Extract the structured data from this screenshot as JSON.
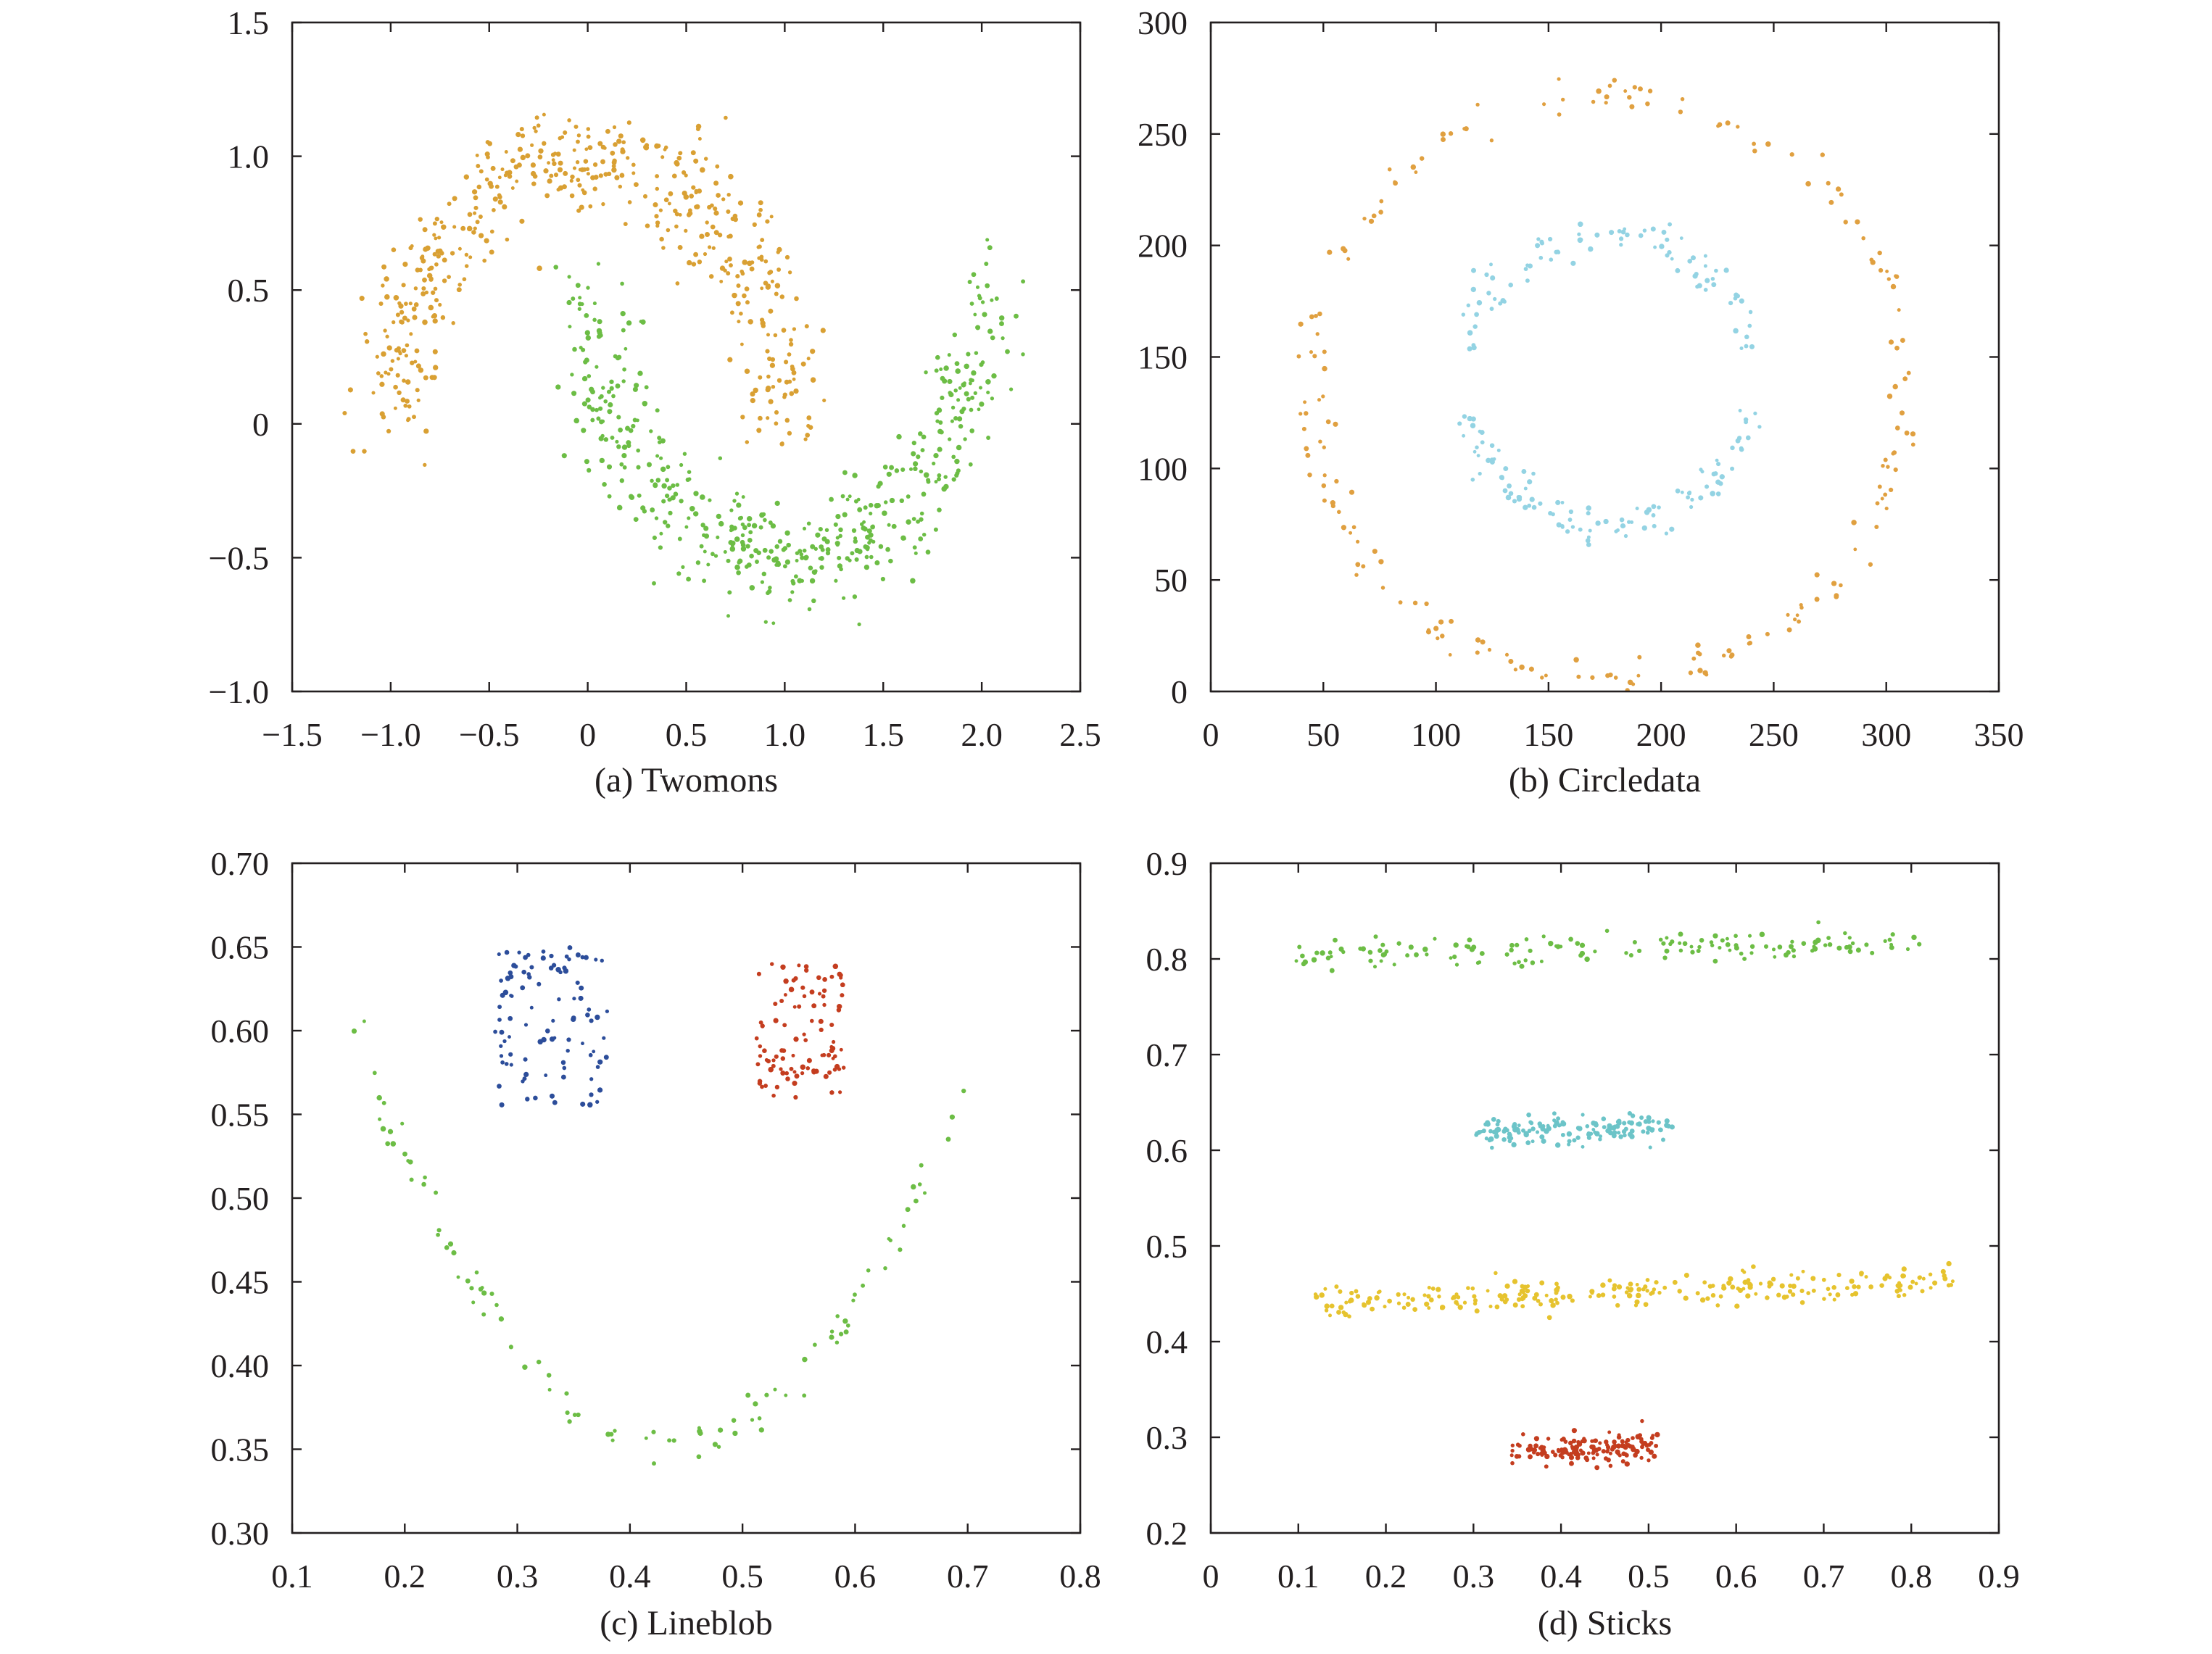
{
  "chart_data": [
    {
      "id": "a",
      "type": "scatter",
      "caption": "(a) Twomons",
      "xlim": [
        -1.5,
        2.5
      ],
      "ylim": [
        -1.0,
        1.5
      ],
      "xticks": [
        -1.5,
        -1.0,
        -0.5,
        0,
        0.5,
        1.0,
        1.5,
        2.0,
        2.5
      ],
      "xtick_labels": [
        "−1.5",
        "−1.0",
        "−0.5",
        "0",
        "0.5",
        "1.0",
        "1.5",
        "2.0",
        "2.5"
      ],
      "yticks": [
        -1.0,
        -0.5,
        0,
        0.5,
        1.0,
        1.5
      ],
      "ytick_labels": [
        "−1.0",
        "−0.5",
        "0",
        "0.5",
        "1.0",
        "1.5"
      ],
      "grid": false,
      "series": [
        {
          "color": "#d9a033",
          "shape": "upper-moon",
          "center": [
            0,
            0
          ],
          "radius": 1.0,
          "angle_range_deg": [
            0,
            180
          ],
          "noise": 0.1,
          "count": 500
        },
        {
          "color": "#6cbd45",
          "shape": "lower-moon",
          "center": [
            1,
            0.5
          ],
          "radius": 1.0,
          "angle_range_deg": [
            180,
            360
          ],
          "noise": 0.1,
          "count": 500
        }
      ]
    },
    {
      "id": "b",
      "type": "scatter",
      "caption": "(b) Circledata",
      "xlim": [
        0,
        350
      ],
      "ylim": [
        0,
        300
      ],
      "xticks": [
        0,
        50,
        100,
        150,
        200,
        250,
        300,
        350
      ],
      "xtick_labels": [
        "0",
        "50",
        "100",
        "150",
        "200",
        "250",
        "300",
        "350"
      ],
      "yticks": [
        0,
        50,
        100,
        150,
        200,
        250,
        300
      ],
      "ytick_labels": [
        "0",
        "50",
        "100",
        "150",
        "200",
        "250",
        "300"
      ],
      "grid": false,
      "series": [
        {
          "color": "#e0a040",
          "shape": "ring",
          "center": [
            177,
            137
          ],
          "radius": 132,
          "noise": 4,
          "count": 200
        },
        {
          "color": "#93d3e3",
          "shape": "ring",
          "center": [
            177,
            140
          ],
          "radius": 65,
          "noise": 4,
          "count": 200,
          "gaps_deg": [
            [
              -12,
              12
            ],
            [
              168,
              192
            ]
          ]
        }
      ]
    },
    {
      "id": "c",
      "type": "scatter",
      "caption": "(c) Lineblob",
      "xlim": [
        0.1,
        0.8
      ],
      "ylim": [
        0.3,
        0.7
      ],
      "xticks": [
        0.1,
        0.2,
        0.3,
        0.4,
        0.5,
        0.6,
        0.7,
        0.8
      ],
      "xtick_labels": [
        "0.1",
        "0.2",
        "0.3",
        "0.4",
        "0.5",
        "0.6",
        "0.7",
        "0.8"
      ],
      "yticks": [
        0.3,
        0.35,
        0.4,
        0.45,
        0.5,
        0.55,
        0.6,
        0.65,
        0.7
      ],
      "ytick_labels": [
        "0.30",
        "0.35",
        "0.40",
        "0.45",
        "0.50",
        "0.55",
        "0.60",
        "0.65",
        "0.70"
      ],
      "grid": false,
      "series": [
        {
          "color": "#6cbd45",
          "shape": "u-curve",
          "vertex": [
            0.435,
            0.35
          ],
          "x_range": [
            0.15,
            0.7
          ],
          "y_top": 0.61,
          "noise": 0.006,
          "count": 100
        },
        {
          "color": "#2c4d9a",
          "shape": "uniform-box",
          "x_range": [
            0.28,
            0.38
          ],
          "y_range": [
            0.555,
            0.65
          ],
          "count": 100
        },
        {
          "color": "#c43d1f",
          "shape": "uniform-box",
          "x_range": [
            0.51,
            0.59
          ],
          "y_range": [
            0.56,
            0.64
          ],
          "count": 100
        }
      ]
    },
    {
      "id": "d",
      "type": "scatter",
      "caption": "(d) Sticks",
      "xlim": [
        0,
        0.9
      ],
      "ylim": [
        0.2,
        0.9
      ],
      "xticks": [
        0,
        0.1,
        0.2,
        0.3,
        0.4,
        0.5,
        0.6,
        0.7,
        0.8,
        0.9
      ],
      "xtick_labels": [
        "0",
        "0.1",
        "0.2",
        "0.3",
        "0.4",
        "0.5",
        "0.6",
        "0.7",
        "0.8",
        "0.9"
      ],
      "yticks": [
        0.2,
        0.3,
        0.4,
        0.5,
        0.6,
        0.7,
        0.8,
        0.9
      ],
      "ytick_labels": [
        "0.2",
        "0.3",
        "0.4",
        "0.5",
        "0.6",
        "0.7",
        "0.8",
        "0.9"
      ],
      "grid": false,
      "series": [
        {
          "color": "#6cbd45",
          "shape": "line",
          "from": [
            0.09,
            0.805
          ],
          "to": [
            0.81,
            0.815
          ],
          "noise": 0.008,
          "count": 150
        },
        {
          "color": "#6cc4c8",
          "shape": "line",
          "from": [
            0.3,
            0.62
          ],
          "to": [
            0.53,
            0.625
          ],
          "noise": 0.008,
          "count": 150
        },
        {
          "color": "#e6c32e",
          "shape": "line",
          "from": [
            0.11,
            0.44
          ],
          "to": [
            0.85,
            0.465
          ],
          "noise": 0.008,
          "count": 250
        },
        {
          "color": "#c43d1f",
          "shape": "line",
          "from": [
            0.34,
            0.285
          ],
          "to": [
            0.51,
            0.29
          ],
          "noise": 0.008,
          "count": 150
        }
      ]
    }
  ]
}
